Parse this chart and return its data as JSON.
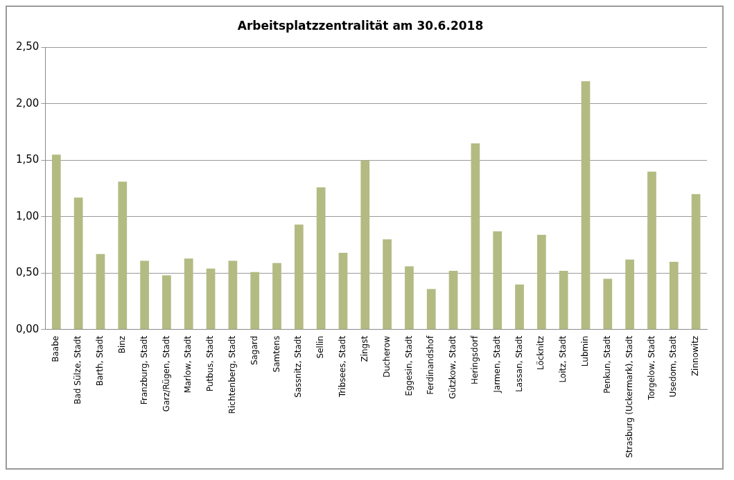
{
  "chart_data": {
    "type": "bar",
    "title": "Arbeitsplatzzentralität am 30.6.2018",
    "categories": [
      "Baabe",
      "Bad Sülze, Stadt",
      "Barth, Stadt",
      "Binz",
      "Franzburg, Stadt",
      "Garz/Rügen, Stadt",
      "Marlow, Stadt",
      "Putbus, Stadt",
      "Richtenberg, Stadt",
      "Sagard",
      "Samtens",
      "Sassnitz, Stadt",
      "Sellin",
      "Tribsees, Stadt",
      "Zingst",
      "Ducherow",
      "Eggesin, Stadt",
      "Ferdinandshof",
      "Gützkow, Stadt",
      "Heringsdorf",
      "Jarmen, Stadt",
      "Lassan, Stadt",
      "Löcknitz",
      "Loitz, Stadt",
      "Lubmin",
      "Penkun, Stadt",
      "Strasburg (Uckermark), Stadt",
      "Torgelow, Stadt",
      "Usedom, Stadt",
      "Zinnowitz"
    ],
    "values": [
      1.55,
      1.17,
      0.67,
      1.31,
      0.61,
      0.48,
      0.63,
      0.54,
      0.61,
      0.51,
      0.59,
      0.93,
      1.26,
      0.68,
      1.5,
      0.8,
      0.56,
      0.36,
      0.52,
      1.65,
      0.87,
      0.4,
      0.84,
      0.52,
      2.2,
      0.45,
      0.62,
      1.4,
      0.6,
      1.2
    ],
    "color": "#b3bb82",
    "ylim": [
      0,
      2.5
    ],
    "yticks": [
      {
        "value": 0,
        "label": "0,00"
      },
      {
        "value": 0.5,
        "label": "0,50"
      },
      {
        "value": 1,
        "label": "1,00"
      },
      {
        "value": 1.5,
        "label": "1,50"
      },
      {
        "value": 2,
        "label": "2,00"
      },
      {
        "value": 2.5,
        "label": "2,50"
      }
    ],
    "grid": "y",
    "legend": false
  }
}
